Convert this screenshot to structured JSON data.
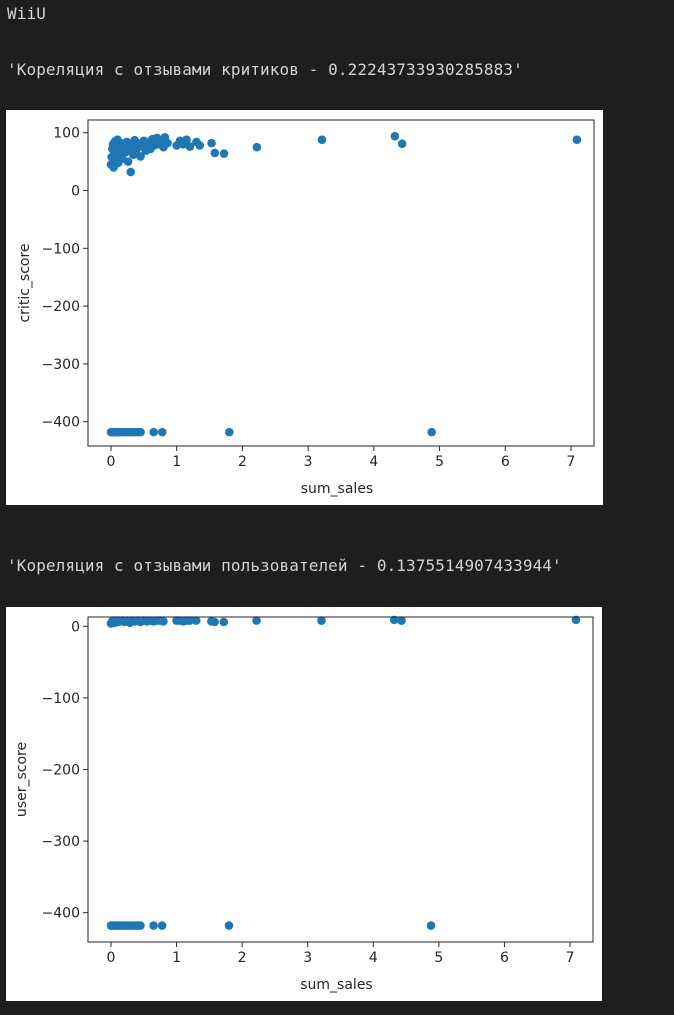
{
  "header_text": "WiiU",
  "critic_corr_text": "'Кореляция с отзывами критиков - 0.22243733930285883'",
  "user_corr_text": "'Кореляция с отзывами пользователей - 0.1375514907433944'",
  "colors": {
    "background": "#1e1e1e",
    "text": "#d4d4d4",
    "point": "#1f77b4"
  },
  "chart_data": [
    {
      "type": "scatter",
      "title": "",
      "xlabel": "sum_sales",
      "ylabel": "critic_score",
      "xlim": [
        -0.35,
        7.35
      ],
      "ylim": [
        -442,
        122
      ],
      "xticks": [
        0,
        1,
        2,
        3,
        4,
        5,
        6,
        7
      ],
      "xtick_labels": [
        "0",
        "1",
        "2",
        "3",
        "4",
        "5",
        "6",
        "7"
      ],
      "yticks": [
        100,
        0,
        -100,
        -200,
        -300,
        -400
      ],
      "ytick_labels": [
        "100",
        "0",
        "−100",
        "−200",
        "−300",
        "−400"
      ],
      "grid": false,
      "points": [
        {
          "x": 0.0,
          "y": 45
        },
        {
          "x": 0.01,
          "y": 58
        },
        {
          "x": 0.02,
          "y": 72
        },
        {
          "x": 0.03,
          "y": 80
        },
        {
          "x": 0.04,
          "y": 40
        },
        {
          "x": 0.05,
          "y": 67
        },
        {
          "x": 0.06,
          "y": 85
        },
        {
          "x": 0.07,
          "y": 52
        },
        {
          "x": 0.08,
          "y": 75
        },
        {
          "x": 0.09,
          "y": 63
        },
        {
          "x": 0.1,
          "y": 88
        },
        {
          "x": 0.11,
          "y": 48
        },
        {
          "x": 0.12,
          "y": 70
        },
        {
          "x": 0.13,
          "y": 78
        },
        {
          "x": 0.14,
          "y": 60
        },
        {
          "x": 0.15,
          "y": 82
        },
        {
          "x": 0.17,
          "y": 55
        },
        {
          "x": 0.18,
          "y": 73
        },
        {
          "x": 0.2,
          "y": 77
        },
        {
          "x": 0.22,
          "y": 66
        },
        {
          "x": 0.24,
          "y": 84
        },
        {
          "x": 0.26,
          "y": 50
        },
        {
          "x": 0.28,
          "y": 71
        },
        {
          "x": 0.3,
          "y": 32
        },
        {
          "x": 0.32,
          "y": 79
        },
        {
          "x": 0.34,
          "y": 62
        },
        {
          "x": 0.36,
          "y": 87
        },
        {
          "x": 0.38,
          "y": 68
        },
        {
          "x": 0.4,
          "y": 74
        },
        {
          "x": 0.42,
          "y": 81
        },
        {
          "x": 0.45,
          "y": 59
        },
        {
          "x": 0.48,
          "y": 76
        },
        {
          "x": 0.5,
          "y": 86
        },
        {
          "x": 0.53,
          "y": 69
        },
        {
          "x": 0.56,
          "y": 83
        },
        {
          "x": 0.6,
          "y": 72
        },
        {
          "x": 0.63,
          "y": 89
        },
        {
          "x": 0.66,
          "y": 78
        },
        {
          "x": 0.7,
          "y": 91
        },
        {
          "x": 0.73,
          "y": 80
        },
        {
          "x": 0.76,
          "y": 85
        },
        {
          "x": 0.8,
          "y": 75
        },
        {
          "x": 0.82,
          "y": 92
        },
        {
          "x": 0.86,
          "y": 82
        },
        {
          "x": 1.0,
          "y": 78
        },
        {
          "x": 1.05,
          "y": 86
        },
        {
          "x": 1.1,
          "y": 80
        },
        {
          "x": 1.15,
          "y": 88
        },
        {
          "x": 1.2,
          "y": 76
        },
        {
          "x": 1.3,
          "y": 84
        },
        {
          "x": 1.35,
          "y": 78
        },
        {
          "x": 1.53,
          "y": 82
        },
        {
          "x": 1.58,
          "y": 65
        },
        {
          "x": 1.72,
          "y": 64
        },
        {
          "x": 2.22,
          "y": 75
        },
        {
          "x": 3.21,
          "y": 88
        },
        {
          "x": 4.32,
          "y": 94
        },
        {
          "x": 4.43,
          "y": 81
        },
        {
          "x": 7.09,
          "y": 88
        },
        {
          "x": 0.0,
          "y": -418
        },
        {
          "x": 0.02,
          "y": -418
        },
        {
          "x": 0.04,
          "y": -418
        },
        {
          "x": 0.06,
          "y": -418
        },
        {
          "x": 0.08,
          "y": -418
        },
        {
          "x": 0.1,
          "y": -418
        },
        {
          "x": 0.12,
          "y": -418
        },
        {
          "x": 0.15,
          "y": -418
        },
        {
          "x": 0.18,
          "y": -418
        },
        {
          "x": 0.21,
          "y": -418
        },
        {
          "x": 0.25,
          "y": -418
        },
        {
          "x": 0.29,
          "y": -418
        },
        {
          "x": 0.33,
          "y": -418
        },
        {
          "x": 0.37,
          "y": -418
        },
        {
          "x": 0.41,
          "y": -418
        },
        {
          "x": 0.45,
          "y": -418
        },
        {
          "x": 0.65,
          "y": -418
        },
        {
          "x": 0.78,
          "y": -418
        },
        {
          "x": 1.8,
          "y": -418
        },
        {
          "x": 4.88,
          "y": -418
        }
      ]
    },
    {
      "type": "scatter",
      "title": "",
      "xlabel": "sum_sales",
      "ylabel": "user_score",
      "xlim": [
        -0.35,
        7.35
      ],
      "ylim": [
        -441,
        13
      ],
      "xticks": [
        0,
        1,
        2,
        3,
        4,
        5,
        6,
        7
      ],
      "xtick_labels": [
        "0",
        "1",
        "2",
        "3",
        "4",
        "5",
        "6",
        "7"
      ],
      "yticks": [
        0,
        -100,
        -200,
        -300,
        -400
      ],
      "ytick_labels": [
        "0",
        "−100",
        "−200",
        "−300",
        "−400"
      ],
      "grid": false,
      "points": [
        {
          "x": 0.0,
          "y": 4
        },
        {
          "x": 0.02,
          "y": 7
        },
        {
          "x": 0.04,
          "y": 8
        },
        {
          "x": 0.06,
          "y": 5
        },
        {
          "x": 0.08,
          "y": 8
        },
        {
          "x": 0.1,
          "y": 6
        },
        {
          "x": 0.12,
          "y": 8
        },
        {
          "x": 0.15,
          "y": 7
        },
        {
          "x": 0.18,
          "y": 8
        },
        {
          "x": 0.21,
          "y": 6
        },
        {
          "x": 0.25,
          "y": 8
        },
        {
          "x": 0.29,
          "y": 5
        },
        {
          "x": 0.33,
          "y": 8
        },
        {
          "x": 0.37,
          "y": 7
        },
        {
          "x": 0.41,
          "y": 8
        },
        {
          "x": 0.45,
          "y": 6
        },
        {
          "x": 0.5,
          "y": 8
        },
        {
          "x": 0.55,
          "y": 7
        },
        {
          "x": 0.6,
          "y": 8
        },
        {
          "x": 0.65,
          "y": 7
        },
        {
          "x": 0.7,
          "y": 8
        },
        {
          "x": 0.75,
          "y": 8
        },
        {
          "x": 0.8,
          "y": 7
        },
        {
          "x": 1.0,
          "y": 8
        },
        {
          "x": 1.05,
          "y": 8
        },
        {
          "x": 1.1,
          "y": 7
        },
        {
          "x": 1.15,
          "y": 8
        },
        {
          "x": 1.2,
          "y": 8
        },
        {
          "x": 1.3,
          "y": 8
        },
        {
          "x": 1.53,
          "y": 7
        },
        {
          "x": 1.58,
          "y": 6
        },
        {
          "x": 1.72,
          "y": 6
        },
        {
          "x": 2.22,
          "y": 8
        },
        {
          "x": 3.21,
          "y": 8
        },
        {
          "x": 4.32,
          "y": 9
        },
        {
          "x": 4.43,
          "y": 8
        },
        {
          "x": 7.09,
          "y": 9
        },
        {
          "x": 0.0,
          "y": -418
        },
        {
          "x": 0.02,
          "y": -418
        },
        {
          "x": 0.04,
          "y": -418
        },
        {
          "x": 0.06,
          "y": -418
        },
        {
          "x": 0.08,
          "y": -418
        },
        {
          "x": 0.1,
          "y": -418
        },
        {
          "x": 0.12,
          "y": -418
        },
        {
          "x": 0.15,
          "y": -418
        },
        {
          "x": 0.18,
          "y": -418
        },
        {
          "x": 0.21,
          "y": -418
        },
        {
          "x": 0.25,
          "y": -418
        },
        {
          "x": 0.29,
          "y": -418
        },
        {
          "x": 0.33,
          "y": -418
        },
        {
          "x": 0.37,
          "y": -418
        },
        {
          "x": 0.41,
          "y": -418
        },
        {
          "x": 0.45,
          "y": -418
        },
        {
          "x": 0.65,
          "y": -418
        },
        {
          "x": 0.78,
          "y": -418
        },
        {
          "x": 1.8,
          "y": -418
        },
        {
          "x": 4.88,
          "y": -418
        }
      ]
    }
  ]
}
